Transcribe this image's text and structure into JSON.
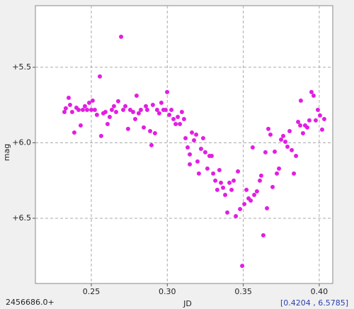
{
  "chart_data": {
    "type": "scatter",
    "y_label": "mag",
    "x_label": "JD",
    "x_offset_label": "2456686.0+",
    "cursor_readout": "[0.4204 , 6.5785]",
    "color": "#e21ee2",
    "grid": true,
    "y_inverted": true,
    "xlim": [
      0.2132,
      0.4089
    ],
    "ylim": [
      5.092,
      6.932
    ],
    "xticks": [
      {
        "value": 0.25,
        "label": "0.25"
      },
      {
        "value": 0.3,
        "label": "0.30"
      },
      {
        "value": 0.35,
        "label": "0.35"
      },
      {
        "value": 0.4,
        "label": "0.40"
      }
    ],
    "yticks": [
      {
        "value": 5.5,
        "label": "+5.5"
      },
      {
        "value": 6.0,
        "label": "+6.0"
      },
      {
        "value": 6.5,
        "label": "+6.5"
      }
    ],
    "x": [
      0.2323,
      0.2332,
      0.2351,
      0.236,
      0.2374,
      0.2388,
      0.2402,
      0.2416,
      0.243,
      0.2444,
      0.2458,
      0.2472,
      0.2486,
      0.25,
      0.2509,
      0.2523,
      0.2537,
      0.2556,
      0.2565,
      0.2579,
      0.2593,
      0.2607,
      0.2621,
      0.2635,
      0.2649,
      0.2663,
      0.2677,
      0.2696,
      0.271,
      0.2724,
      0.2742,
      0.2756,
      0.2775,
      0.2789,
      0.2798,
      0.2812,
      0.2826,
      0.2845,
      0.2859,
      0.2868,
      0.2887,
      0.2896,
      0.2905,
      0.2919,
      0.2933,
      0.2947,
      0.2961,
      0.2975,
      0.2989,
      0.2999,
      0.3013,
      0.3027,
      0.3041,
      0.3055,
      0.3069,
      0.3083,
      0.3096,
      0.311,
      0.312,
      0.3134,
      0.3148,
      0.3148,
      0.3162,
      0.3176,
      0.319,
      0.3199,
      0.3208,
      0.3222,
      0.3236,
      0.325,
      0.3264,
      0.3278,
      0.3292,
      0.3302,
      0.3316,
      0.3329,
      0.3343,
      0.3353,
      0.3367,
      0.3381,
      0.3395,
      0.3409,
      0.3423,
      0.3437,
      0.3451,
      0.3465,
      0.3479,
      0.3493,
      0.3507,
      0.3521,
      0.3535,
      0.3549,
      0.3562,
      0.3572,
      0.359,
      0.3609,
      0.3618,
      0.3632,
      0.3646,
      0.3656,
      0.3665,
      0.3679,
      0.3693,
      0.3707,
      0.3721,
      0.3735,
      0.3749,
      0.3763,
      0.3777,
      0.3791,
      0.3805,
      0.3819,
      0.3833,
      0.3847,
      0.3861,
      0.3875,
      0.3879,
      0.3893,
      0.3907,
      0.3921,
      0.3935,
      0.3949,
      0.3963,
      0.3977,
      0.3991,
      0.4005,
      0.4019,
      0.4033
    ],
    "values": [
      5.796,
      5.772,
      5.702,
      5.749,
      5.796,
      5.932,
      5.768,
      5.782,
      5.885,
      5.782,
      5.758,
      5.782,
      5.735,
      5.782,
      5.721,
      5.782,
      5.815,
      5.561,
      5.955,
      5.805,
      5.796,
      5.876,
      5.829,
      5.782,
      5.758,
      5.796,
      5.725,
      5.298,
      5.782,
      5.758,
      5.908,
      5.782,
      5.796,
      5.843,
      5.688,
      5.805,
      5.782,
      5.899,
      5.758,
      5.782,
      5.923,
      6.016,
      5.749,
      5.937,
      5.782,
      5.805,
      5.735,
      5.782,
      5.782,
      5.664,
      5.815,
      5.782,
      5.843,
      5.876,
      5.829,
      5.876,
      5.796,
      5.843,
      5.97,
      6.031,
      6.077,
      6.143,
      5.932,
      5.984,
      5.946,
      6.124,
      6.204,
      6.04,
      5.97,
      6.063,
      6.171,
      6.087,
      6.087,
      6.204,
      6.251,
      6.312,
      6.181,
      6.265,
      6.298,
      6.345,
      6.462,
      6.265,
      6.312,
      6.251,
      6.486,
      6.19,
      6.439,
      6.815,
      6.406,
      6.312,
      6.369,
      6.383,
      6.031,
      6.345,
      6.322,
      6.251,
      6.218,
      6.613,
      6.063,
      6.434,
      5.908,
      5.946,
      6.293,
      6.059,
      6.204,
      6.171,
      5.979,
      5.955,
      5.993,
      6.026,
      5.923,
      6.049,
      6.204,
      6.087,
      5.862,
      5.885,
      5.721,
      5.937,
      5.885,
      5.899,
      5.852,
      5.664,
      5.688,
      5.852,
      5.782,
      5.819,
      5.913,
      5.843
    ]
  }
}
